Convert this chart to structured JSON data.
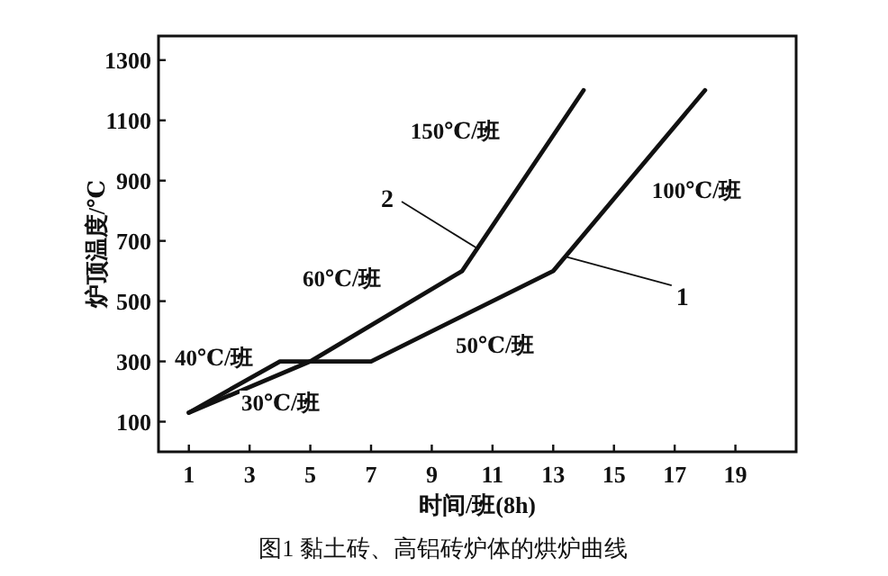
{
  "chart_data": {
    "type": "line",
    "xlabel": "时间/班(8h)",
    "ylabel": "炉顶温度/℃",
    "xlim": [
      0,
      21
    ],
    "ylim": [
      0,
      1380
    ],
    "xticks": [
      1,
      3,
      5,
      7,
      9,
      11,
      13,
      15,
      17,
      19
    ],
    "yticks": [
      100,
      300,
      500,
      700,
      900,
      1100,
      1300
    ],
    "grid": false,
    "marker": "none",
    "line_style": "solid",
    "series": [
      {
        "color": "#111111",
        "x": [
          1,
          4,
          7,
          13,
          18
        ],
        "values": [
          130,
          300,
          300,
          600,
          1200
        ]
      },
      {
        "color": "#111111",
        "x": [
          1,
          5,
          10,
          14
        ],
        "values": [
          130,
          300,
          600,
          1200
        ]
      }
    ],
    "annotations": [
      "150℃/班",
      "100℃/班",
      "60℃/班",
      "50℃/班",
      "40℃/班",
      "30℃/班",
      {
        "text": "2",
        "x": 10.5,
        "y": 675
      },
      {
        "text": "1",
        "x": 13.4,
        "y": 648
      },
      "图1 黏土砖、高铝砖炉体的烘炉曲线"
    ]
  }
}
